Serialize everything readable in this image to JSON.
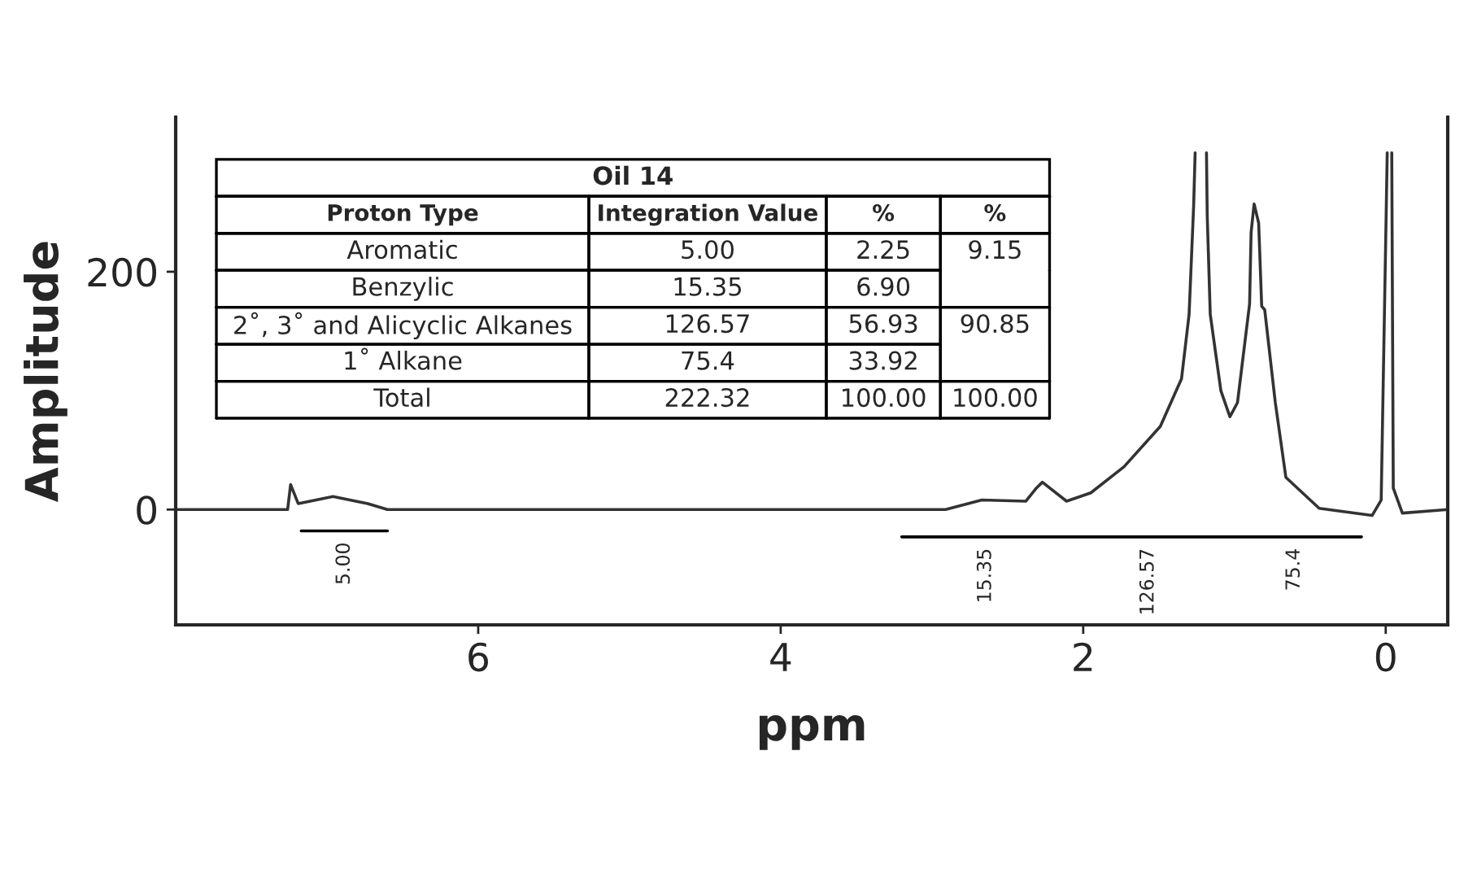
{
  "chart_data": {
    "type": "line",
    "xlabel": "ppm",
    "ylabel": "Amplitude",
    "xlim": [
      8.0,
      -0.41
    ],
    "ylim": [
      -97,
      330
    ],
    "xticks": [
      6,
      4,
      2,
      0
    ],
    "yticks": [
      0,
      200
    ],
    "grid": false,
    "legend": false,
    "marker": "none",
    "line_style": "solid",
    "series": [
      {
        "color": "#333333",
        "x": [
          8.0,
          7.26,
          7.24,
          7.19,
          6.96,
          6.73,
          6.6,
          3.45,
          2.91,
          2.67,
          2.38,
          2.31,
          2.27,
          2.11,
          1.95,
          1.73,
          1.49,
          1.35,
          1.3,
          1.27,
          1.26,
          1.22,
          1.185,
          1.18,
          1.16,
          1.09,
          1.03,
          0.98,
          0.9,
          0.89,
          0.87,
          0.84,
          0.82,
          0.8,
          0.73,
          0.66,
          0.44,
          0.09,
          0.03,
          -0.01,
          -0.025,
          -0.04,
          -0.05,
          -0.11,
          -0.41
        ],
        "values": [
          0,
          0,
          21,
          5,
          11,
          5,
          0,
          0,
          0,
          8,
          7,
          18,
          23,
          7,
          14,
          36,
          70,
          110,
          164,
          255,
          300,
          null,
          300,
          247,
          164,
          100,
          78,
          90,
          173,
          233,
          257,
          241,
          171,
          168,
          90,
          27,
          1,
          -5,
          8,
          300,
          null,
          300,
          18,
          -3,
          0
        ]
      },
      {
        "color": "#000000",
        "x": [
          7.17,
          6.6
        ],
        "values": [
          -18,
          -18
        ]
      },
      {
        "color": "#000000",
        "x": [
          3.2,
          2.09,
          1.05,
          0.16
        ],
        "values": [
          -23,
          -23,
          -23,
          -23
        ]
      }
    ],
    "annotations": [
      "5.00",
      "15.35",
      "126.57",
      "75.4",
      "Oil 14",
      "Proton Type\tIntegration Value\t%\t%",
      "Aromatic\t5.00\t2.25\t9.15",
      "Benzylic\t15.35\t6.90\t",
      "2˚, 3˚ and Alicyclic Alkanes\t126.57\t56.93\t90.85",
      "1˚ Alkane\t75.4\t33.92\t",
      "Total\t222.32\t100.00\t100.00"
    ]
  }
}
